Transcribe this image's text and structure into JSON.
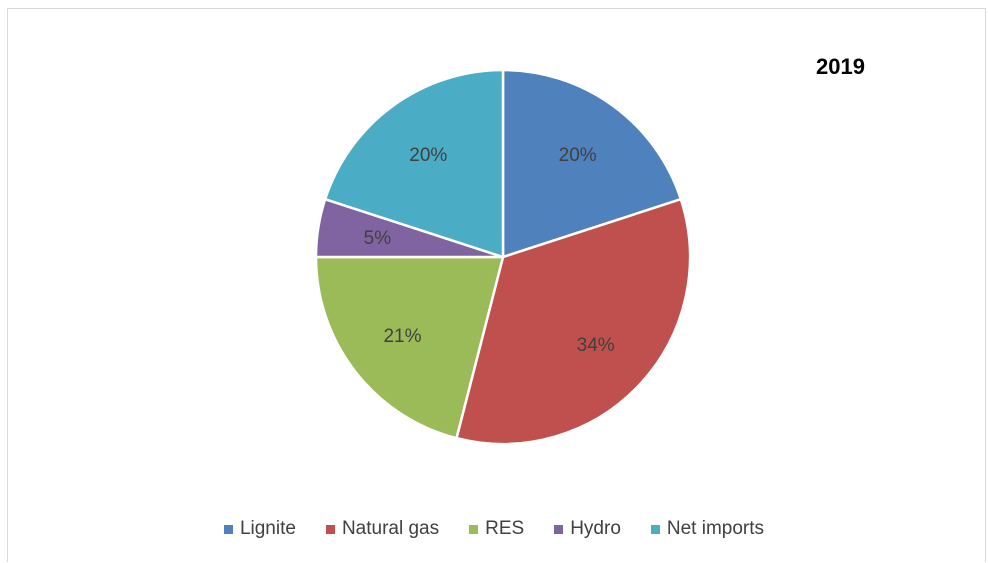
{
  "chart_data": {
    "type": "pie",
    "title": "2019",
    "categories": [
      "Lignite",
      "Natural gas",
      "RES",
      "Hydro",
      "Net imports"
    ],
    "values": [
      20,
      34,
      21,
      5,
      20
    ],
    "labels": [
      "20%",
      "34%",
      "21%",
      "5%",
      "20%"
    ],
    "colors": [
      "#4f81bd",
      "#c0504d",
      "#9bbb59",
      "#8064a2",
      "#4bacc6"
    ],
    "legend_position": "bottom"
  }
}
